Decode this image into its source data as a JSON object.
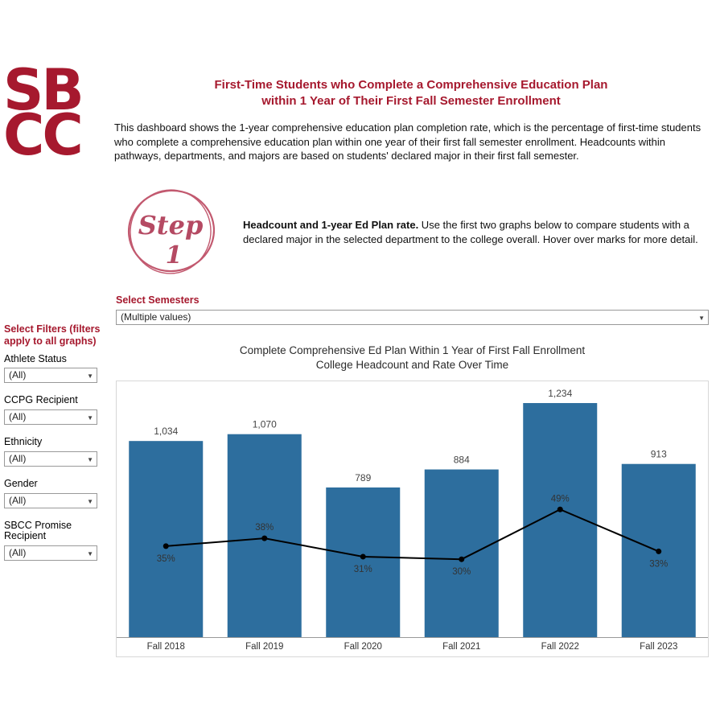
{
  "brand": {
    "logo_line1": "SB",
    "logo_line2": "CC",
    "color": "#A6192E"
  },
  "header": {
    "title_line1": "First-Time Students who Complete a Comprehensive Education Plan",
    "title_line2": "within 1 Year of Their First Fall Semester Enrollment",
    "description": "This dashboard shows the 1-year comprehensive education plan completion rate, which is the percentage of first-time students who complete a comprehensive education plan within one year of their first fall semester enrollment. Headcounts within pathways, departments, and majors are based on students' declared major in their first fall semester."
  },
  "step": {
    "icon_word": "Step",
    "icon_number": "1",
    "bold_text": "Headcount and 1-year Ed Plan rate.",
    "text": " Use the first two graphs below to compare students with a declared major in the selected department to the college overall. Hover over marks for more detail."
  },
  "semester_filter": {
    "label": "Select Semesters",
    "value": "(Multiple values)"
  },
  "filters": {
    "heading": "Select Filters (filters apply to all graphs)",
    "items": [
      {
        "label": "Athlete Status",
        "value": "(All)"
      },
      {
        "label": "CCPG Recipient",
        "value": "(All)"
      },
      {
        "label": "Ethnicity",
        "value": "(All)"
      },
      {
        "label": "Gender",
        "value": "(All)"
      },
      {
        "label": "SBCC Promise Recipient",
        "value": "(All)"
      }
    ]
  },
  "chart_data": {
    "type": "bar",
    "title_line1": "Complete Comprehensive Ed Plan Within 1 Year of First Fall Enrollment",
    "title_line2": "College Headcount and Rate Over Time",
    "categories": [
      "Fall 2018",
      "Fall 2019",
      "Fall 2020",
      "Fall 2021",
      "Fall 2022",
      "Fall 2023"
    ],
    "series": [
      {
        "name": "College Headcount",
        "type": "bar",
        "values": [
          1034,
          1070,
          789,
          884,
          1234,
          913
        ],
        "labels": [
          "1,034",
          "1,070",
          "789",
          "884",
          "1,234",
          "913"
        ],
        "color": "#2d6e9e"
      },
      {
        "name": "1-Year Ed Plan Completion Rate",
        "type": "line",
        "values": [
          35,
          38,
          31,
          30,
          49,
          33
        ],
        "labels": [
          "35%",
          "38%",
          "31%",
          "30%",
          "49%",
          "33%"
        ],
        "label_positions": [
          "below",
          "above",
          "below",
          "below",
          "above",
          "below"
        ],
        "color": "#000000"
      }
    ],
    "xlabel": "",
    "ylabel": "",
    "grid": false,
    "legend": "none"
  }
}
